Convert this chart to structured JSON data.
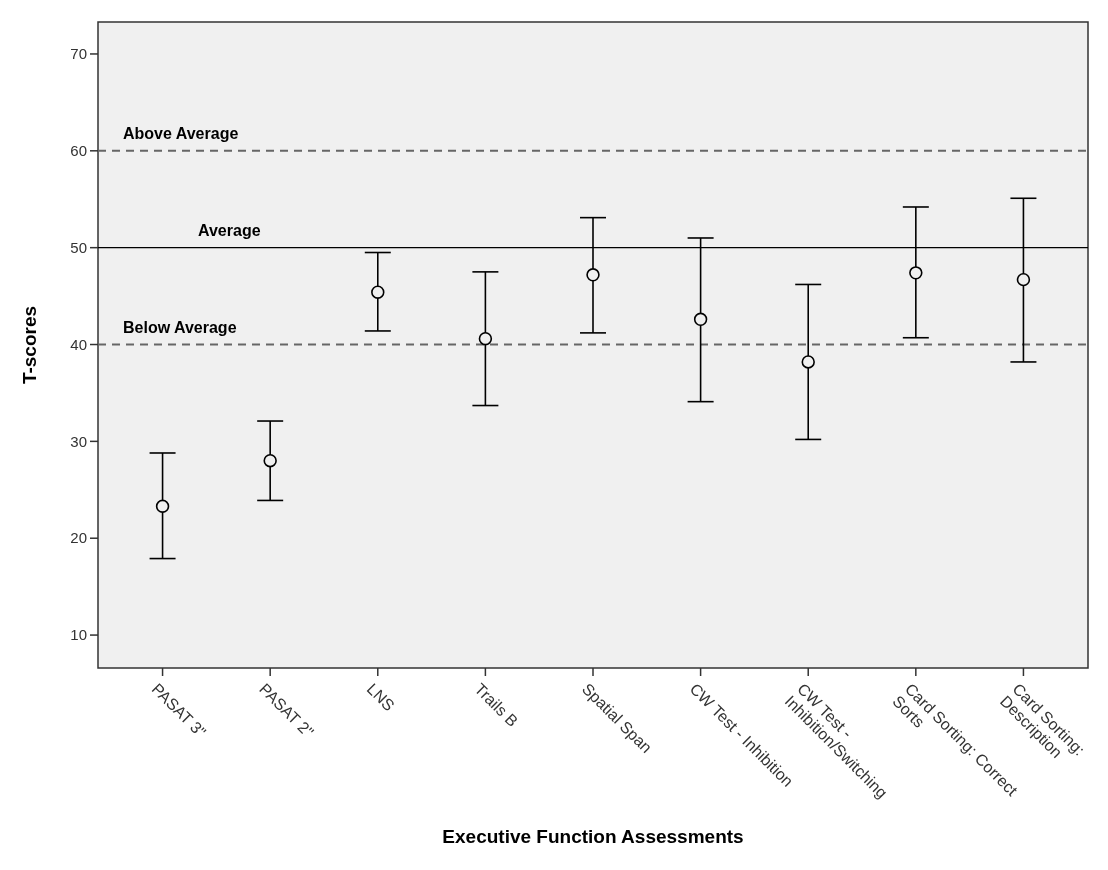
{
  "chart_data": {
    "type": "scatter",
    "xlabel": "Executive Function Assessments",
    "ylabel": "T-scores",
    "categories": [
      "PASAT 3\"",
      "PASAT 2\"",
      "LNS",
      "Trails B",
      "Spatial Span",
      "CW Test - Inhibition",
      "CW Test -\nInhibition/Switching",
      "Card Sorting: Correct\nSorts",
      "Card Sorting:\nDescription"
    ],
    "series": [
      {
        "color": "#000000",
        "values": [
          23.3,
          28.0,
          45.4,
          40.6,
          47.2,
          42.6,
          38.2,
          47.4,
          46.7
        ],
        "errors": [
          [
            17.9,
            28.8
          ],
          [
            23.9,
            32.1
          ],
          [
            41.4,
            49.5
          ],
          [
            33.7,
            47.5
          ],
          [
            41.2,
            53.1
          ],
          [
            34.1,
            51.0
          ],
          [
            30.2,
            46.2
          ],
          [
            40.7,
            54.2
          ],
          [
            38.2,
            55.1
          ]
        ]
      }
    ],
    "ylim": [
      6.6,
      73.3
    ],
    "yticks": [
      10,
      20,
      30,
      40,
      50,
      60,
      70
    ],
    "marker": "circle",
    "grid": false,
    "ref_lines": [
      {
        "axis": "y",
        "value": 60,
        "label": "Above Average",
        "line_style": "dashed",
        "color": "#666666"
      },
      {
        "axis": "y",
        "value": 50,
        "label": "Average",
        "line_style": "solid",
        "color": "#000000"
      },
      {
        "axis": "y",
        "value": 40,
        "label": "Below Average",
        "line_style": "dashed",
        "color": "#666666"
      }
    ]
  }
}
